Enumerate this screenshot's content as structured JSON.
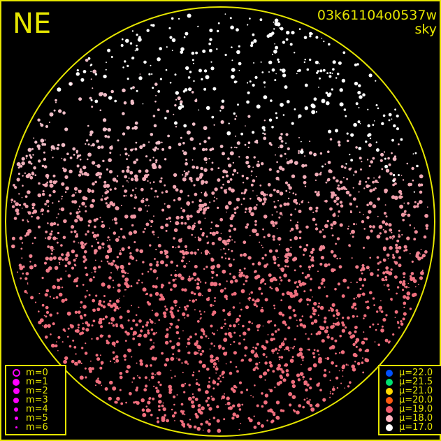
{
  "header": {
    "direction": "NE",
    "filename": "03k61104o0537w",
    "image_type": "sky"
  },
  "colors": {
    "frame": "#e6e600",
    "lower_sky_stars": "#f07a80",
    "upper_sky_stars": "#ffffff"
  },
  "magnitude_legend": {
    "color": "#ff00ff",
    "items": [
      {
        "label": "m=0",
        "hollow": true
      },
      {
        "label": "m=1"
      },
      {
        "label": "m=2"
      },
      {
        "label": "m=3"
      },
      {
        "label": "m=4"
      },
      {
        "label": "m=5"
      },
      {
        "label": "m=6"
      }
    ]
  },
  "surface_brightness_legend": {
    "items": [
      {
        "label": "μ=22.0",
        "color": "#0050ff"
      },
      {
        "label": "μ=21.5",
        "color": "#00e070"
      },
      {
        "label": "μ=21.0",
        "color": "#ffd800"
      },
      {
        "label": "μ=20.0",
        "color": "#ff5a10"
      },
      {
        "label": "μ=19.0",
        "color": "#f05a6a"
      },
      {
        "label": "μ=18.0",
        "color": "#ffb4c0"
      },
      {
        "label": "μ=17.0",
        "color": "#ffffff"
      }
    ]
  }
}
